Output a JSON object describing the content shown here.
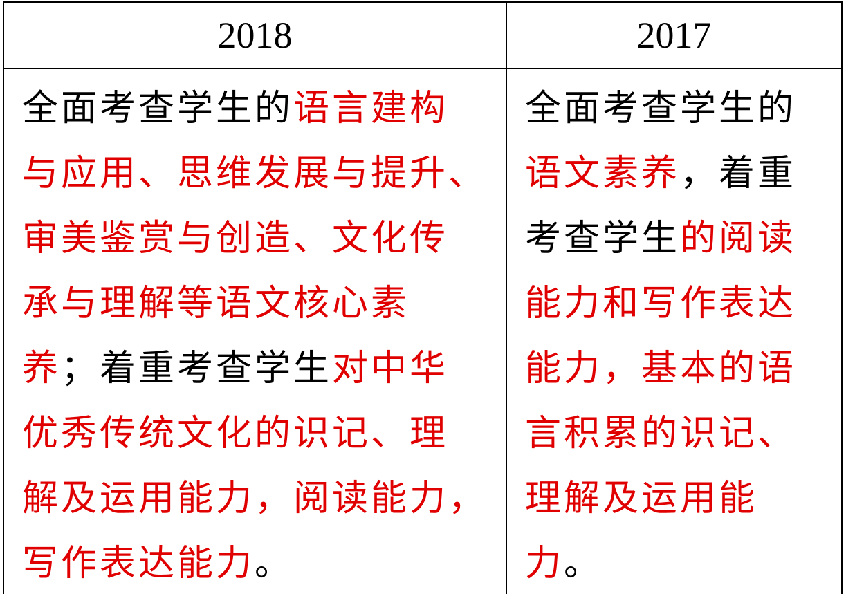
{
  "table": {
    "header": [
      "2018",
      "2017"
    ],
    "cells": [
      {
        "lines": [
          [
            {
              "text": "全面考查学生的",
              "color": "#000000"
            },
            {
              "text": "语言建构",
              "color": "#e00000"
            }
          ],
          [
            {
              "text": "与应用、思维发展与提升、",
              "color": "#e00000"
            }
          ],
          [
            {
              "text": "审美鉴赏与创造、文化传",
              "color": "#e00000"
            }
          ],
          [
            {
              "text": "承与理解等语文核心素",
              "color": "#e00000"
            }
          ],
          [
            {
              "text": "养",
              "color": "#e00000"
            },
            {
              "text": "；着重考查学生",
              "color": "#000000"
            },
            {
              "text": "对中华",
              "color": "#e00000"
            }
          ],
          [
            {
              "text": "优秀传统文化的识记、理",
              "color": "#e00000"
            }
          ],
          [
            {
              "text": "解及运用能力，阅读能力，",
              "color": "#e00000"
            }
          ],
          [
            {
              "text": "写作表达能力",
              "color": "#e00000"
            },
            {
              "text": "。",
              "color": "#000000"
            }
          ]
        ]
      },
      {
        "lines": [
          [
            {
              "text": "全面考查学生的",
              "color": "#000000"
            }
          ],
          [
            {
              "text": "语文素养",
              "color": "#e00000"
            },
            {
              "text": "，着重",
              "color": "#000000"
            }
          ],
          [
            {
              "text": "考查学生",
              "color": "#000000"
            },
            {
              "text": "的阅读",
              "color": "#e00000"
            }
          ],
          [
            {
              "text": "能力和写作表达",
              "color": "#e00000"
            }
          ],
          [
            {
              "text": "能力，基本的语",
              "color": "#e00000"
            }
          ],
          [
            {
              "text": "言积累的识记、",
              "color": "#e00000"
            }
          ],
          [
            {
              "text": "理解及运用能",
              "color": "#e00000"
            }
          ],
          [
            {
              "text": "力",
              "color": "#e00000"
            },
            {
              "text": "。",
              "color": "#000000"
            }
          ]
        ]
      }
    ]
  }
}
